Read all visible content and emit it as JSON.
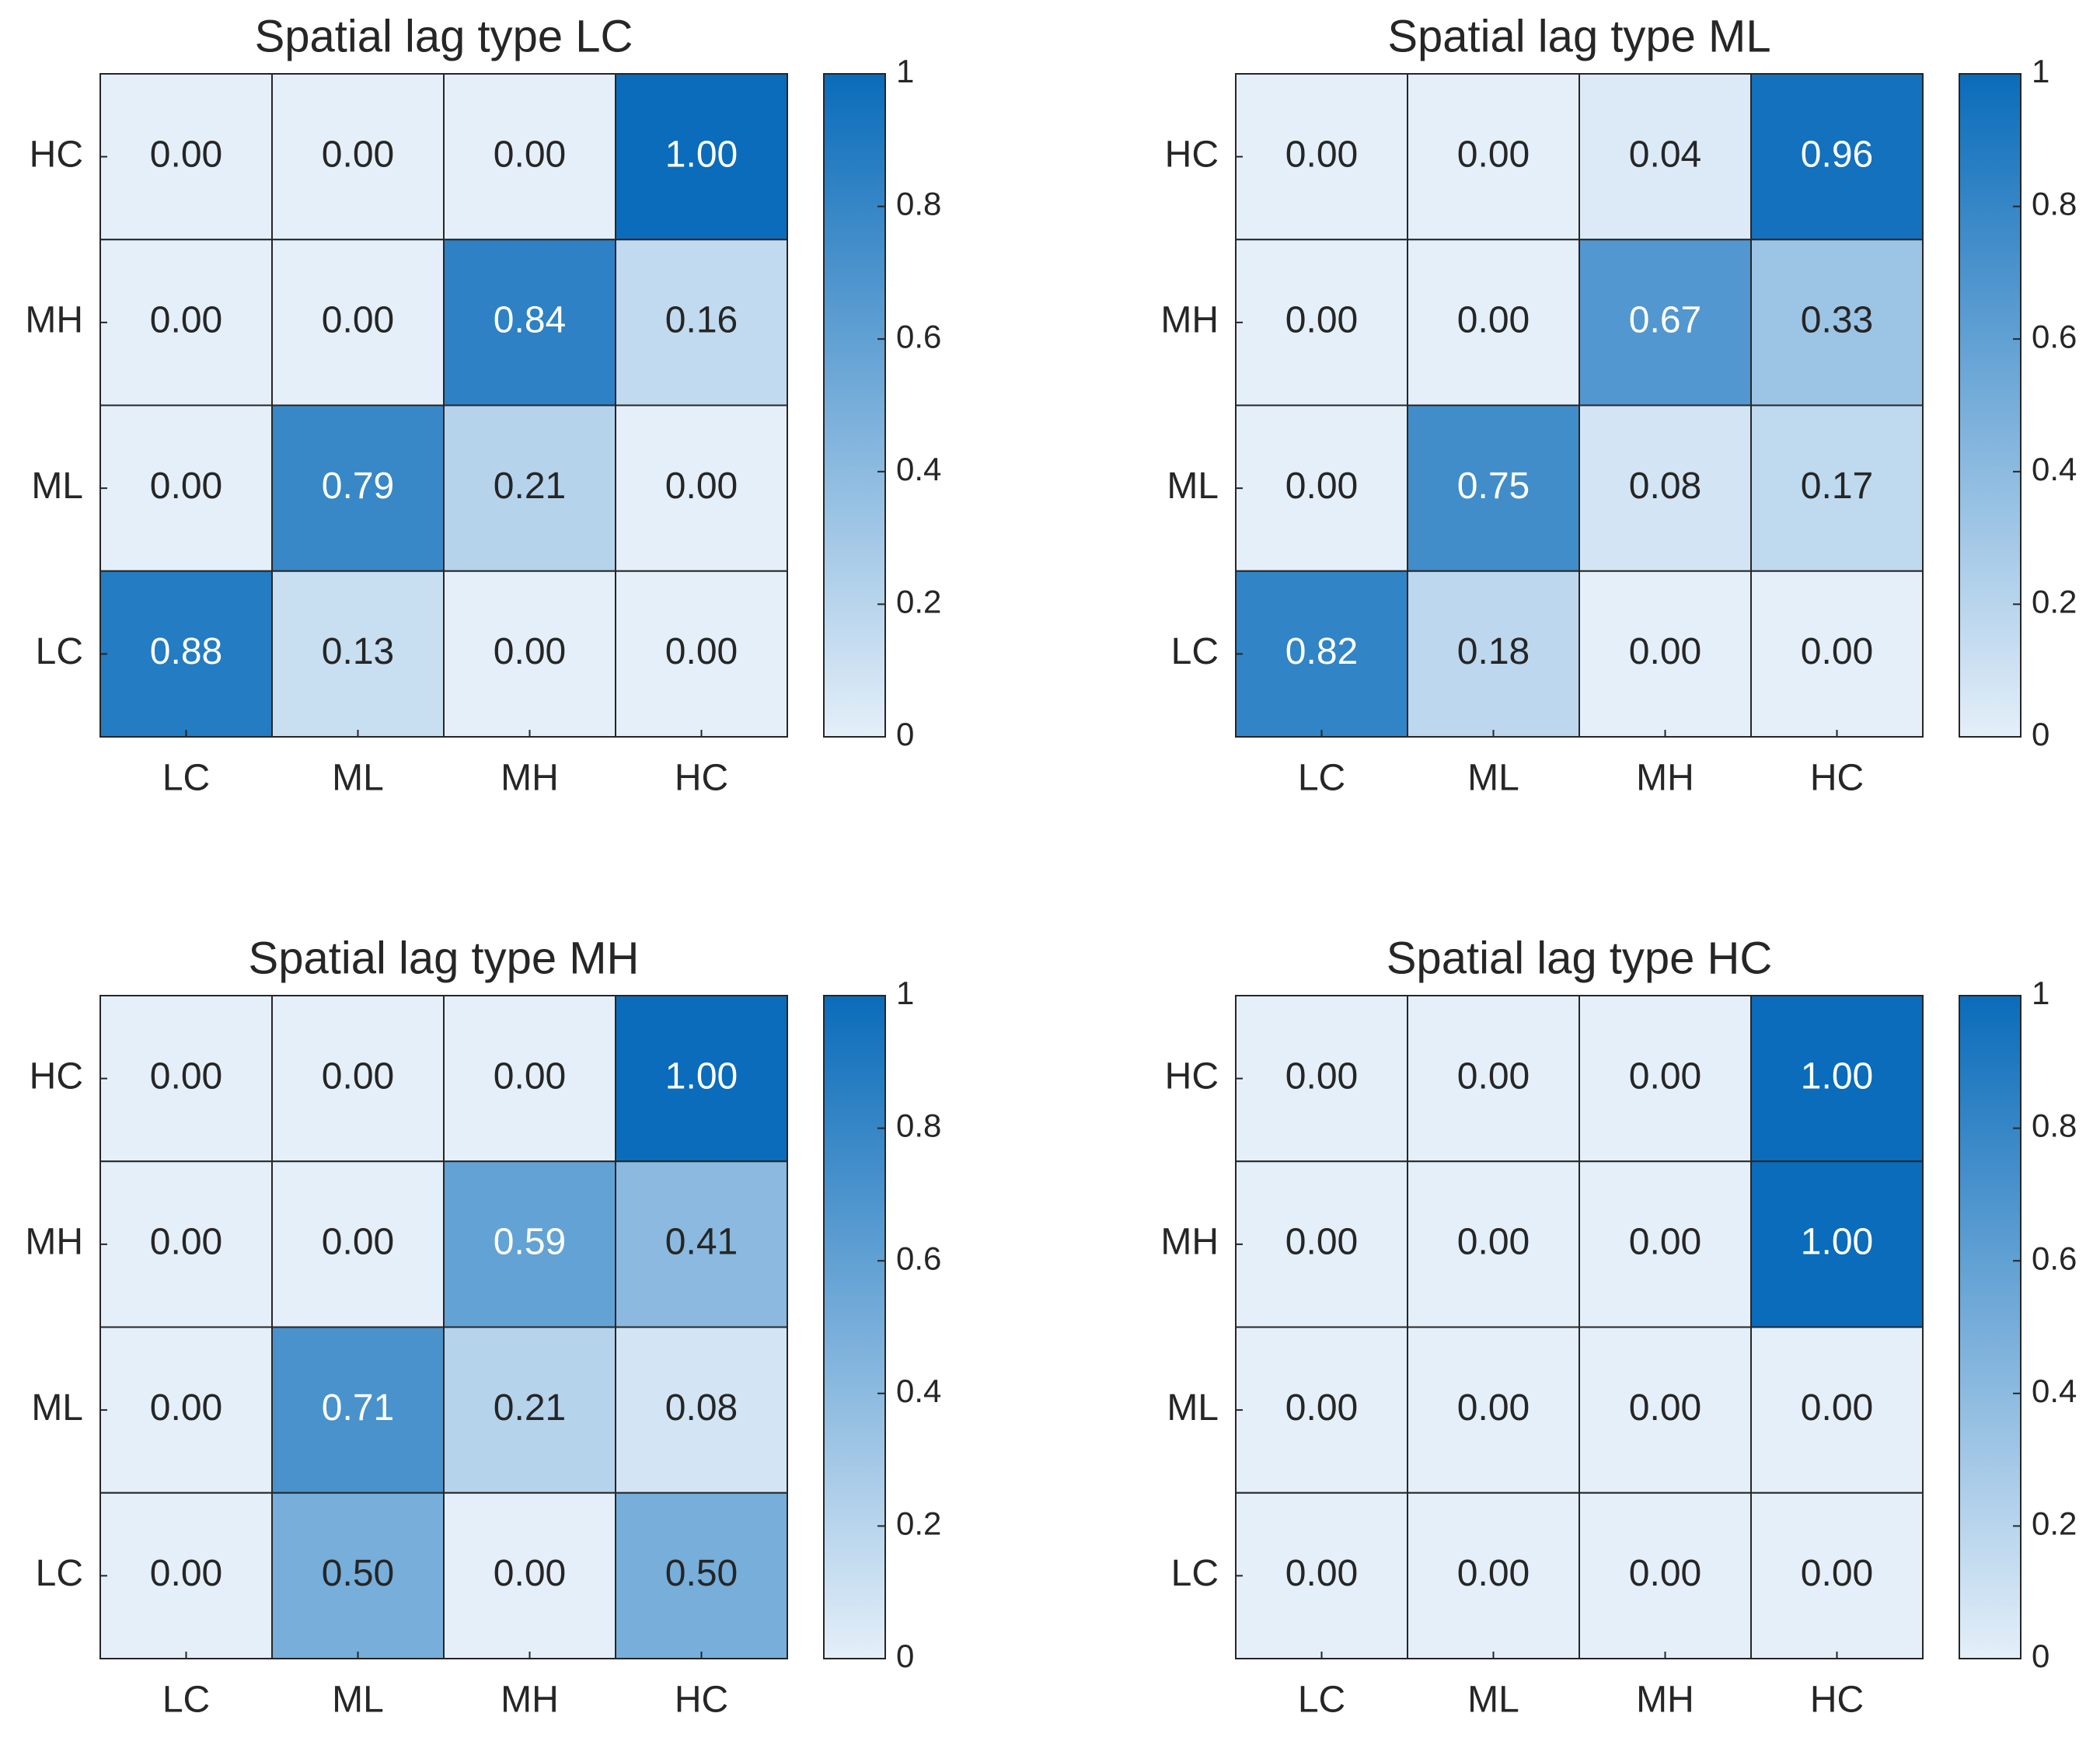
{
  "chart_data": [
    {
      "type": "heatmap",
      "title": "Spatial lag type LC",
      "x_categories": [
        "LC",
        "ML",
        "MH",
        "HC"
      ],
      "y_categories": [
        "HC",
        "MH",
        "ML",
        "LC"
      ],
      "values": [
        [
          0,
          0,
          0,
          1.0
        ],
        [
          0,
          0,
          0.84,
          0.16
        ],
        [
          0,
          0.79,
          0.21,
          0
        ],
        [
          0.88,
          0.13,
          0,
          0
        ]
      ],
      "value_labels": [
        [
          "0.00",
          "0.00",
          "0.00",
          "1.00"
        ],
        [
          "0.00",
          "0.00",
          "0.84",
          "0.16"
        ],
        [
          "0.00",
          "0.79",
          "0.21",
          "0.00"
        ],
        [
          "0.88",
          "0.13",
          "0.00",
          "0.00"
        ]
      ],
      "clim": [
        0,
        1
      ],
      "cticks": [
        0,
        0.2,
        0.4,
        0.6,
        0.8,
        1
      ],
      "colormap": [
        "#e4eff9",
        "#0a6cba"
      ]
    },
    {
      "type": "heatmap",
      "title": "Spatial lag type ML",
      "x_categories": [
        "LC",
        "ML",
        "MH",
        "HC"
      ],
      "y_categories": [
        "HC",
        "MH",
        "ML",
        "LC"
      ],
      "values": [
        [
          0,
          0,
          0.04,
          0.96
        ],
        [
          0,
          0,
          0.67,
          0.33
        ],
        [
          0,
          0.75,
          0.08,
          0.17
        ],
        [
          0.82,
          0.18,
          0,
          0
        ]
      ],
      "value_labels": [
        [
          "0.00",
          "0.00",
          "0.04",
          "0.96"
        ],
        [
          "0.00",
          "0.00",
          "0.67",
          "0.33"
        ],
        [
          "0.00",
          "0.75",
          "0.08",
          "0.17"
        ],
        [
          "0.82",
          "0.18",
          "0.00",
          "0.00"
        ]
      ],
      "clim": [
        0,
        1
      ],
      "cticks": [
        0,
        0.2,
        0.4,
        0.6,
        0.8,
        1
      ],
      "colormap": [
        "#e4eff9",
        "#0a6cba"
      ]
    },
    {
      "type": "heatmap",
      "title": "Spatial lag type MH",
      "x_categories": [
        "LC",
        "ML",
        "MH",
        "HC"
      ],
      "y_categories": [
        "HC",
        "MH",
        "ML",
        "LC"
      ],
      "values": [
        [
          0,
          0,
          0,
          1.0
        ],
        [
          0,
          0,
          0.59,
          0.41
        ],
        [
          0,
          0.71,
          0.21,
          0.08
        ],
        [
          0,
          0.5,
          0,
          0.5
        ]
      ],
      "value_labels": [
        [
          "0.00",
          "0.00",
          "0.00",
          "1.00"
        ],
        [
          "0.00",
          "0.00",
          "0.59",
          "0.41"
        ],
        [
          "0.00",
          "0.71",
          "0.21",
          "0.08"
        ],
        [
          "0.00",
          "0.50",
          "0.00",
          "0.50"
        ]
      ],
      "clim": [
        0,
        1
      ],
      "cticks": [
        0,
        0.2,
        0.4,
        0.6,
        0.8,
        1
      ],
      "colormap": [
        "#e4eff9",
        "#0a6cba"
      ]
    },
    {
      "type": "heatmap",
      "title": "Spatial lag type HC",
      "x_categories": [
        "LC",
        "ML",
        "MH",
        "HC"
      ],
      "y_categories": [
        "HC",
        "MH",
        "ML",
        "LC"
      ],
      "values": [
        [
          0,
          0,
          0,
          1.0
        ],
        [
          0,
          0,
          0,
          1.0
        ],
        [
          0,
          0,
          0,
          0
        ],
        [
          0,
          0,
          0,
          0
        ]
      ],
      "value_labels": [
        [
          "0.00",
          "0.00",
          "0.00",
          "1.00"
        ],
        [
          "0.00",
          "0.00",
          "0.00",
          "1.00"
        ],
        [
          "0.00",
          "0.00",
          "0.00",
          "0.00"
        ],
        [
          "0.00",
          "0.00",
          "0.00",
          "0.00"
        ]
      ],
      "clim": [
        0,
        1
      ],
      "cticks": [
        0,
        0.2,
        0.4,
        0.6,
        0.8,
        1
      ],
      "colormap": [
        "#e4eff9",
        "#0a6cba"
      ]
    }
  ]
}
